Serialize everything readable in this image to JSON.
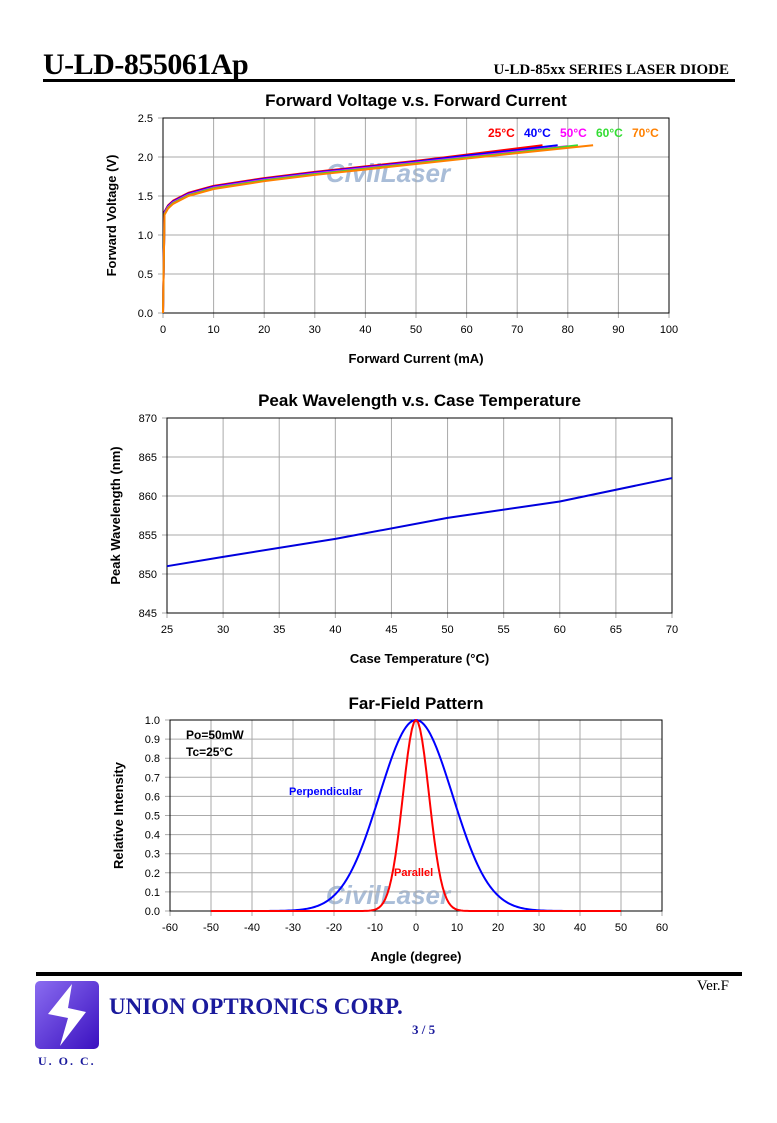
{
  "header": {
    "title": "U-LD-855061Ap",
    "series": "U-LD-85xx SERIES LASER DIODE"
  },
  "footer": {
    "version": "Ver.F",
    "company": "UNION OPTRONICS CORP.",
    "page": "3 / 5",
    "logo_text": "U. O. C."
  },
  "watermark": "CivilLaser",
  "chart_data": [
    {
      "type": "line",
      "title": "Forward Voltage v.s. Forward Current",
      "xlabel": "Forward Current (mA)",
      "ylabel": "Forward Voltage (V)",
      "xlim": [
        0,
        100
      ],
      "ylim": [
        0,
        2.5
      ],
      "xticks": [
        0,
        10,
        20,
        30,
        40,
        50,
        60,
        70,
        80,
        90,
        100
      ],
      "yticks": [
        "0.0",
        "0.5",
        "1.0",
        "1.5",
        "2.0",
        "2.5"
      ],
      "grid": true,
      "legend": "top-right",
      "series": [
        {
          "name": "25°C",
          "color": "#ff0000",
          "x": [
            0,
            0.3,
            1,
            2,
            5,
            10,
            20,
            30,
            40,
            50,
            60,
            70,
            75
          ],
          "y": [
            0,
            1.3,
            1.38,
            1.44,
            1.54,
            1.63,
            1.73,
            1.81,
            1.88,
            1.95,
            2.03,
            2.11,
            2.15
          ]
        },
        {
          "name": "40°C",
          "color": "#0000ff",
          "x": [
            0,
            0.3,
            1,
            2,
            5,
            10,
            20,
            30,
            40,
            50,
            60,
            70,
            78
          ],
          "y": [
            0,
            1.29,
            1.37,
            1.43,
            1.53,
            1.62,
            1.72,
            1.8,
            1.87,
            1.94,
            2.02,
            2.09,
            2.15
          ]
        },
        {
          "name": "50°C",
          "color": "#ff00ff",
          "x": [
            0,
            0.3,
            1,
            2,
            5,
            10,
            20,
            30,
            40,
            50,
            60,
            70,
            80
          ],
          "y": [
            0,
            1.28,
            1.36,
            1.42,
            1.52,
            1.61,
            1.71,
            1.79,
            1.86,
            1.93,
            2.0,
            2.07,
            2.14
          ]
        },
        {
          "name": "60°C",
          "color": "#33dd33",
          "x": [
            0,
            0.3,
            1,
            2,
            5,
            10,
            20,
            30,
            40,
            50,
            60,
            70,
            82
          ],
          "y": [
            0,
            1.27,
            1.35,
            1.41,
            1.51,
            1.6,
            1.7,
            1.78,
            1.85,
            1.92,
            1.99,
            2.06,
            2.15
          ]
        },
        {
          "name": "70°C",
          "color": "#ff8000",
          "x": [
            0,
            0.3,
            1,
            2,
            5,
            10,
            20,
            30,
            40,
            50,
            60,
            70,
            85
          ],
          "y": [
            0,
            1.26,
            1.34,
            1.4,
            1.5,
            1.59,
            1.69,
            1.77,
            1.84,
            1.91,
            1.98,
            2.05,
            2.15
          ]
        }
      ]
    },
    {
      "type": "line",
      "title": "Peak Wavelength v.s. Case Temperature",
      "xlabel": "Case Temperature (°C)",
      "ylabel": "Peak Wavelength (nm)",
      "xlim": [
        25,
        70
      ],
      "ylim": [
        845,
        870
      ],
      "xticks": [
        25,
        30,
        35,
        40,
        45,
        50,
        55,
        60,
        65,
        70
      ],
      "yticks": [
        845,
        850,
        855,
        860,
        865,
        870
      ],
      "grid": true,
      "series": [
        {
          "name": "Peak Wavelength",
          "color": "#0000dd",
          "x": [
            25,
            30,
            40,
            50,
            60,
            70
          ],
          "y": [
            851,
            852.2,
            854.5,
            857.2,
            859.3,
            862.3
          ]
        }
      ]
    },
    {
      "type": "line",
      "title": "Far-Field Pattern",
      "xlabel": "Angle (degree)",
      "ylabel": "Relative Intensity",
      "xlim": [
        -60,
        60
      ],
      "ylim": [
        0,
        1
      ],
      "xticks": [
        -60,
        -50,
        -40,
        -30,
        -20,
        -10,
        0,
        10,
        20,
        30,
        40,
        50,
        60
      ],
      "yticks": [
        "0.0",
        "0.1",
        "0.2",
        "0.3",
        "0.4",
        "0.5",
        "0.6",
        "0.7",
        "0.8",
        "0.9",
        "1.0"
      ],
      "grid": true,
      "annotations": [
        "Po=50mW",
        "Tc=25°C"
      ],
      "series": [
        {
          "name": "Perpendicular",
          "color": "#0000ff",
          "fwhm_deg": 21,
          "range": [
            -50,
            50
          ]
        },
        {
          "name": "Parallel",
          "color": "#ff0000",
          "fwhm_deg": 7.5,
          "range": [
            -50,
            50
          ]
        }
      ]
    }
  ]
}
